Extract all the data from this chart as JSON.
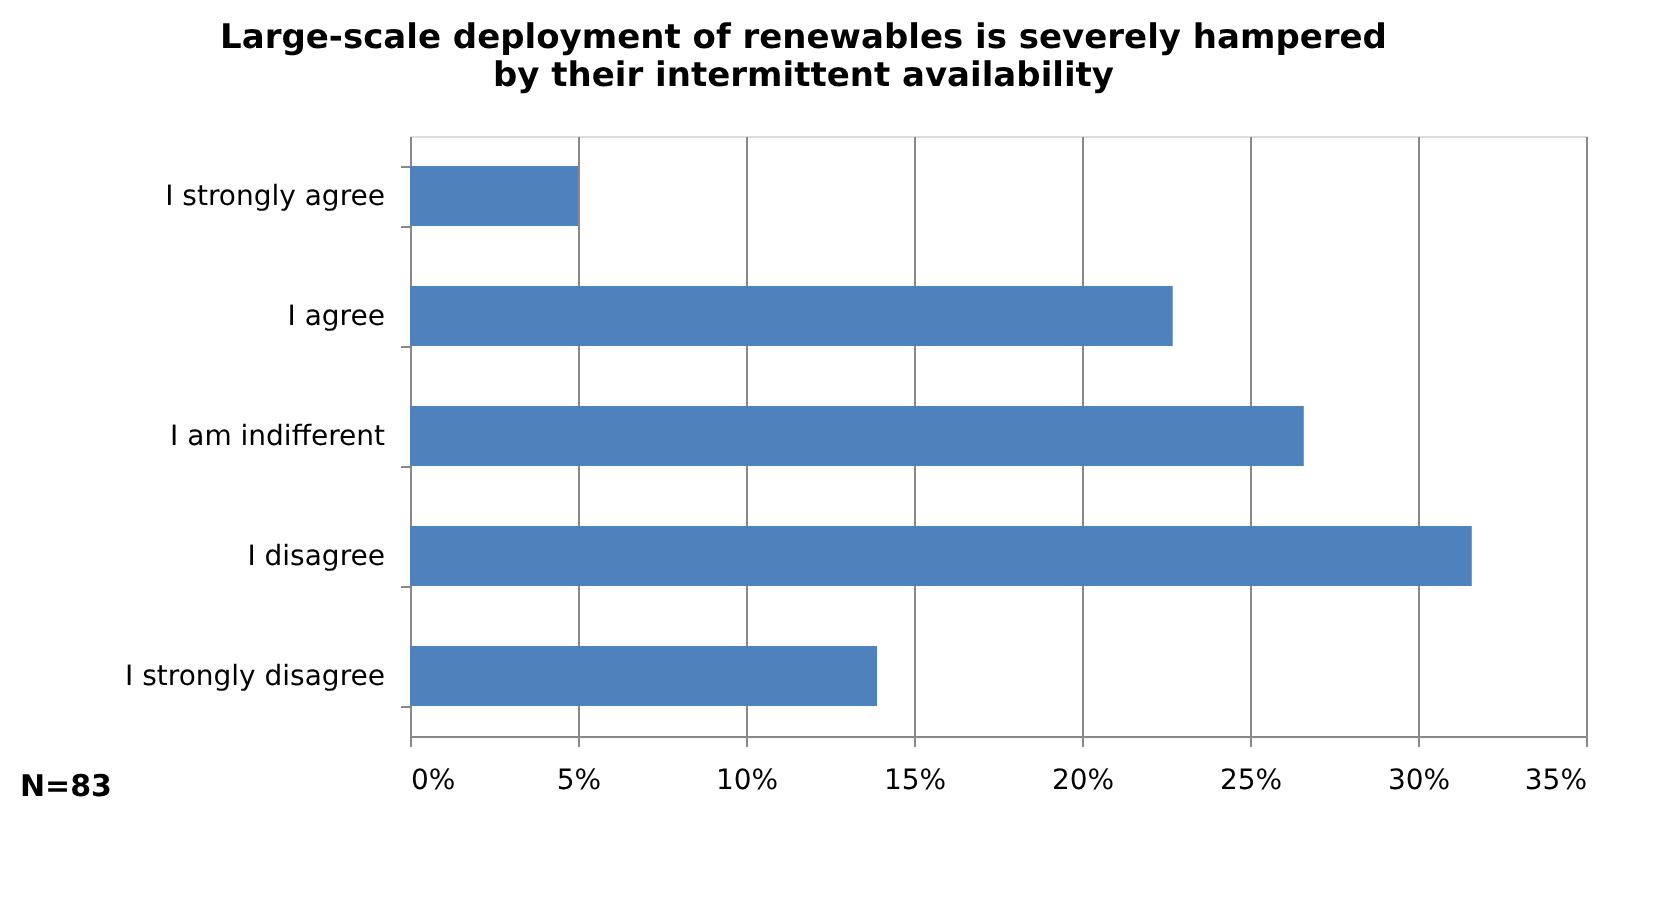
{
  "chart_data": {
    "type": "bar",
    "orientation": "horizontal",
    "title": [
      "Large-scale deployment of renewables is severely hampered",
      "by their intermittent availability"
    ],
    "categories": [
      "I strongly agree",
      "I agree",
      "I am indifferent",
      "I disagree",
      "I strongly disagree"
    ],
    "values": [
      5.0,
      22.7,
      26.6,
      31.6,
      13.9
    ],
    "color": "#4f81bd",
    "xlim": [
      0,
      35
    ],
    "xticks": [
      {
        "value": 0,
        "label": "0%"
      },
      {
        "value": 5,
        "label": "5%"
      },
      {
        "value": 10,
        "label": "10%"
      },
      {
        "value": 15,
        "label": "15%"
      },
      {
        "value": 20,
        "label": "20%"
      },
      {
        "value": 25,
        "label": "25%"
      },
      {
        "value": 30,
        "label": "30%"
      },
      {
        "value": 35,
        "label": "35%"
      }
    ],
    "grid": "x",
    "annotations": [
      "N=83"
    ]
  }
}
